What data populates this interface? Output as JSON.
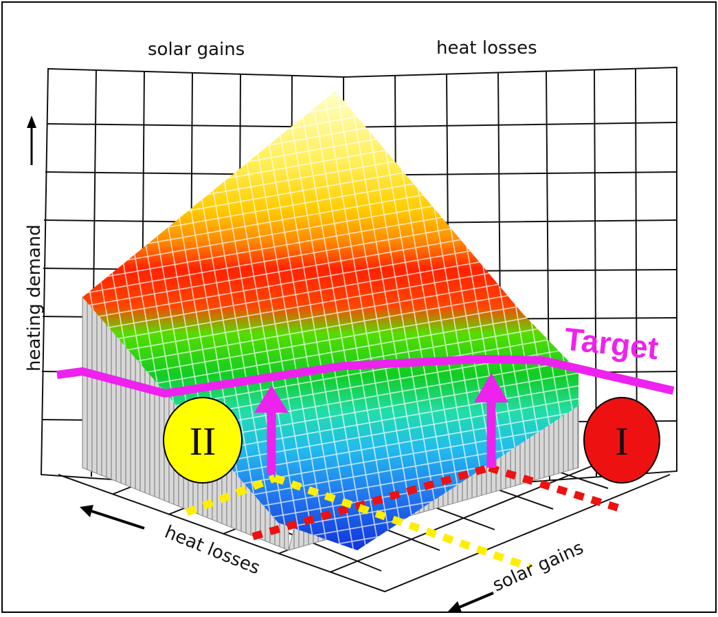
{
  "labels": {
    "top_left": "solar gains",
    "top_right": "heat losses",
    "vertical": "heating demand",
    "bottom_left": "heat losses",
    "bottom_right": "solar gains",
    "target": "Target",
    "marker_one": "I",
    "marker_two": "II"
  },
  "colors": {
    "target_line": "#ee22ee",
    "marker_one_fill": "#ee1111",
    "marker_two_fill": "#ffff00",
    "red_dotted": "#ee1111",
    "yellow_dotted": "#ffee00"
  },
  "surface_gradient": [
    "#ffffc8",
    "#ffee55",
    "#ffcc00",
    "#ff8800",
    "#ff2200",
    "#ff4400",
    "#55dd00",
    "#11cc22",
    "#22ddaa",
    "#22bbee",
    "#2277ee",
    "#1133dd"
  ]
}
